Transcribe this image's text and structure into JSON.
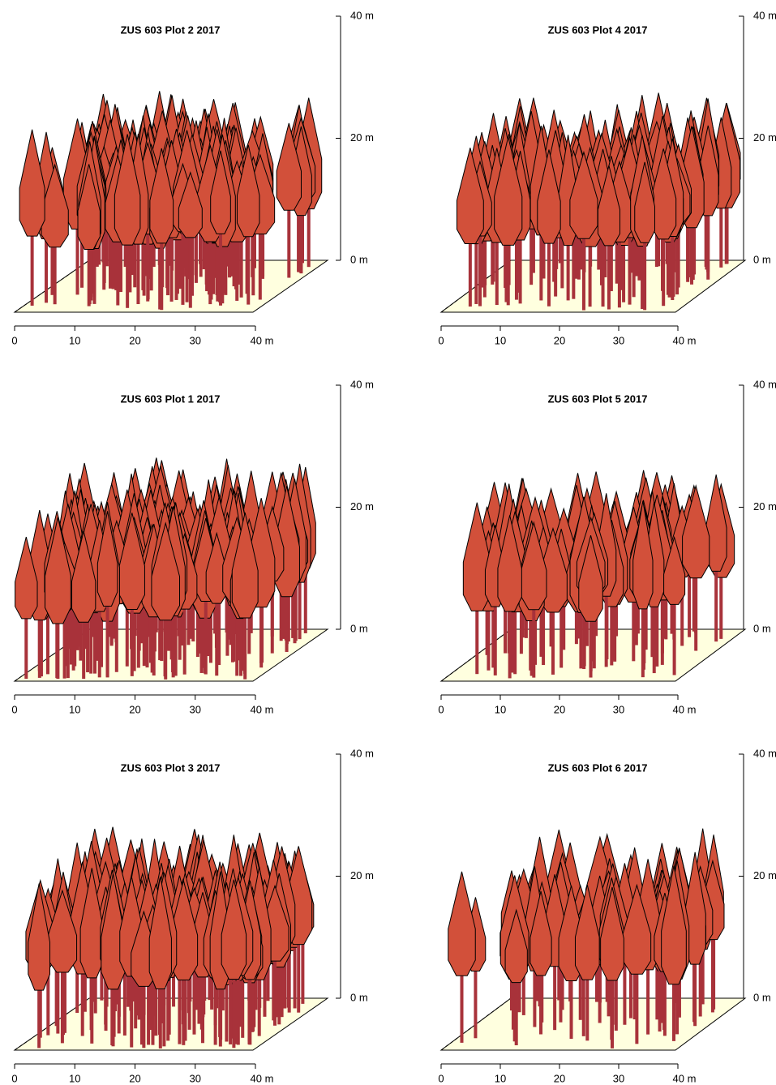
{
  "chart_data": [
    {
      "type": "stand3d",
      "title": "ZUS 603 Plot 2 2017",
      "xlim": [
        0,
        40
      ],
      "xticks": [
        0,
        10,
        20,
        30,
        {
          "value": 40,
          "label": "40 m"
        }
      ],
      "zlim": [
        0,
        40
      ],
      "zticks": [
        {
          "value": 0,
          "label": "0 m"
        },
        {
          "value": 20,
          "label": "20 m"
        },
        {
          "value": 40,
          "label": "40 m"
        }
      ],
      "crown_color": "#d2503a",
      "stem_color": "#a8323a",
      "floor_color": "#ffffdf"
    },
    {
      "type": "stand3d",
      "title": "ZUS 603 Plot 4 2017",
      "xlim": [
        0,
        40
      ],
      "xticks": [
        0,
        10,
        20,
        30,
        {
          "value": 40,
          "label": "40 m"
        }
      ],
      "zlim": [
        0,
        40
      ],
      "zticks": [
        {
          "value": 0,
          "label": "0 m"
        },
        {
          "value": 20,
          "label": "20 m"
        },
        {
          "value": 40,
          "label": "40 m"
        }
      ],
      "crown_color": "#d2503a",
      "stem_color": "#a8323a",
      "floor_color": "#ffffdf"
    },
    {
      "type": "stand3d",
      "title": "ZUS 603 Plot 1 2017",
      "xlim": [
        0,
        40
      ],
      "xticks": [
        0,
        10,
        20,
        30,
        {
          "value": 40,
          "label": "40 m"
        }
      ],
      "zlim": [
        0,
        40
      ],
      "zticks": [
        {
          "value": 0,
          "label": "0 m"
        },
        {
          "value": 20,
          "label": "20 m"
        },
        {
          "value": 40,
          "label": "40 m"
        }
      ],
      "crown_color": "#d2503a",
      "stem_color": "#a8323a",
      "floor_color": "#ffffdf"
    },
    {
      "type": "stand3d",
      "title": "ZUS 603 Plot 5 2017",
      "xlim": [
        0,
        40
      ],
      "xticks": [
        0,
        10,
        20,
        30,
        {
          "value": 40,
          "label": "40 m"
        }
      ],
      "zlim": [
        0,
        40
      ],
      "zticks": [
        {
          "value": 0,
          "label": "0 m"
        },
        {
          "value": 20,
          "label": "20 m"
        },
        {
          "value": 40,
          "label": "40 m"
        }
      ],
      "crown_color": "#d2503a",
      "stem_color": "#a8323a",
      "floor_color": "#ffffdf"
    },
    {
      "type": "stand3d",
      "title": "ZUS 603 Plot 3 2017",
      "xlim": [
        0,
        40
      ],
      "xticks": [
        0,
        10,
        20,
        30,
        {
          "value": 40,
          "label": "40 m"
        }
      ],
      "zlim": [
        0,
        40
      ],
      "zticks": [
        {
          "value": 0,
          "label": "0 m"
        },
        {
          "value": 20,
          "label": "20 m"
        },
        {
          "value": 40,
          "label": "40 m"
        }
      ],
      "crown_color": "#d2503a",
      "stem_color": "#a8323a",
      "floor_color": "#ffffdf"
    },
    {
      "type": "stand3d",
      "title": "ZUS 603 Plot 6 2017",
      "xlim": [
        0,
        40
      ],
      "xticks": [
        0,
        10,
        20,
        30,
        {
          "value": 40,
          "label": "40 m"
        }
      ],
      "zlim": [
        0,
        40
      ],
      "zticks": [
        {
          "value": 0,
          "label": "0 m"
        },
        {
          "value": 20,
          "label": "20 m"
        },
        {
          "value": 40,
          "label": "40 m"
        }
      ],
      "crown_color": "#d2503a",
      "stem_color": "#a8323a",
      "floor_color": "#ffffdf"
    }
  ]
}
